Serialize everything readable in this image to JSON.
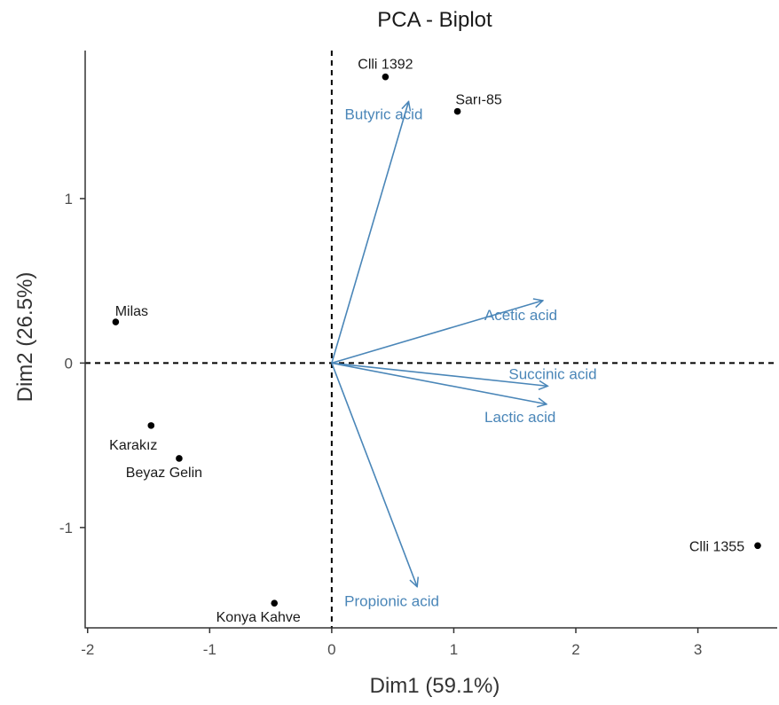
{
  "chart_data": {
    "type": "scatter",
    "title": "PCA - Biplot",
    "xlabel": "Dim1 (59.1%)",
    "ylabel": "Dim2 (26.5%)",
    "xlim": [
      -2.02,
      3.65
    ],
    "ylim": [
      -1.61,
      1.9
    ],
    "x_ticks": [
      -2,
      -1,
      0,
      1,
      2,
      3
    ],
    "y_ticks": [
      -1,
      0,
      1
    ],
    "grid": false,
    "reference_lines": {
      "x": 0,
      "y": 0,
      "style": "dashed"
    },
    "points": [
      {
        "label": "Clli 1392",
        "x": 0.44,
        "y": 1.74
      },
      {
        "label": "Sarı-85",
        "x": 1.03,
        "y": 1.53
      },
      {
        "label": "Milas",
        "x": -1.77,
        "y": 0.25
      },
      {
        "label": "Karakız",
        "x": -1.48,
        "y": -0.38
      },
      {
        "label": "Beyaz Gelin",
        "x": -1.25,
        "y": -0.58
      },
      {
        "label": "Konya Kahve",
        "x": -0.47,
        "y": -1.46
      },
      {
        "label": "Clli 1355",
        "x": 3.49,
        "y": -1.11
      }
    ],
    "variables": [
      {
        "label": "Butyric acid",
        "x": 0.63,
        "y": 1.59
      },
      {
        "label": "Acetic acid",
        "x": 1.73,
        "y": 0.38
      },
      {
        "label": "Succinic acid",
        "x": 1.77,
        "y": -0.14
      },
      {
        "label": "Lactic acid",
        "x": 1.76,
        "y": -0.25
      },
      {
        "label": "Propionic acid",
        "x": 0.7,
        "y": -1.36
      }
    ],
    "colors": {
      "points": "#000000",
      "variables": "#4a86b8",
      "axis": "#333333"
    }
  }
}
